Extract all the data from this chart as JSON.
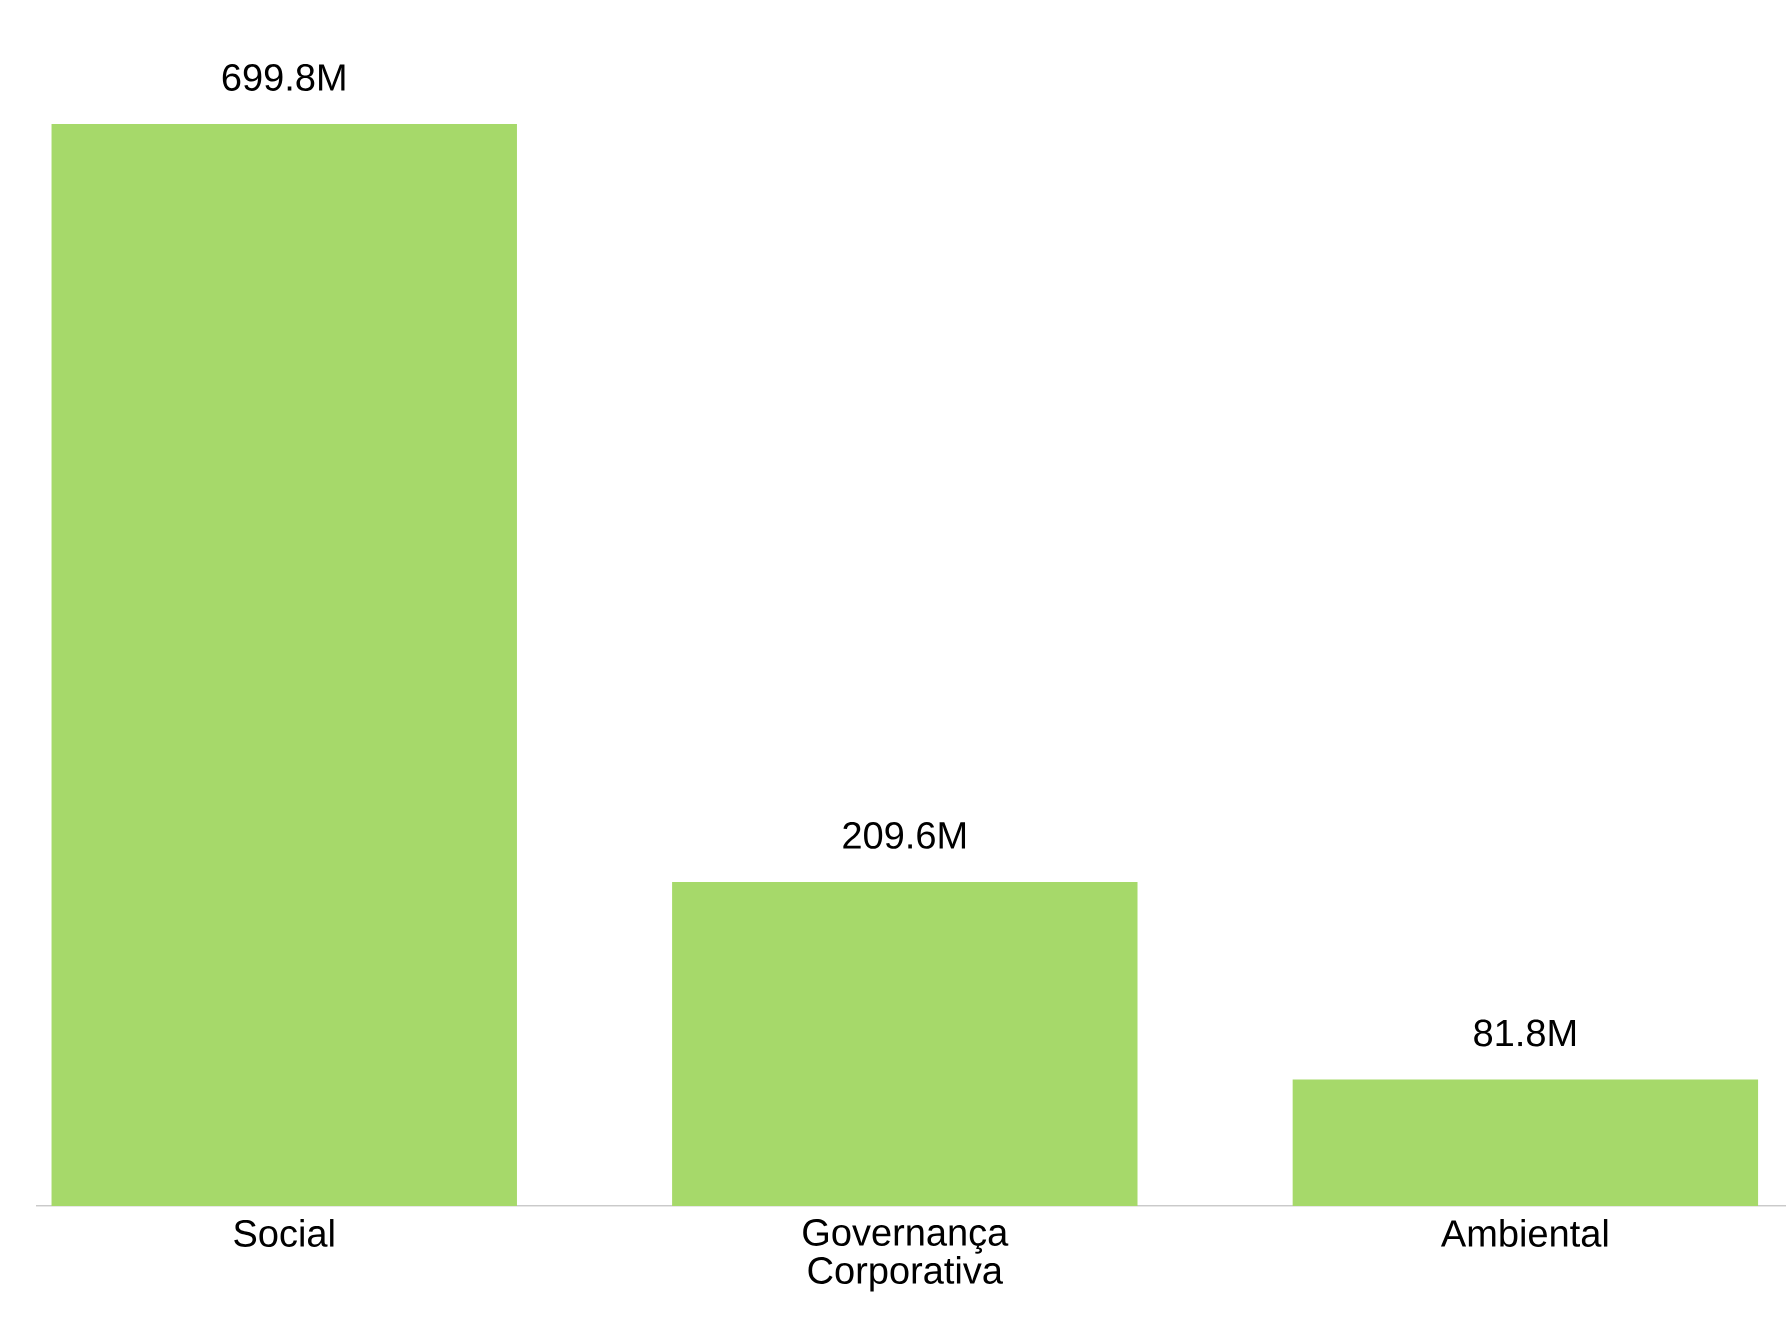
{
  "chart_data": {
    "type": "bar",
    "categories": [
      "Social",
      "Governança Corporativa",
      "Ambiental"
    ],
    "values": [
      699.8,
      209.6,
      81.8
    ],
    "value_labels": [
      "699.8M",
      "209.6M",
      "81.8M"
    ],
    "color": "#a6d96a"
  }
}
